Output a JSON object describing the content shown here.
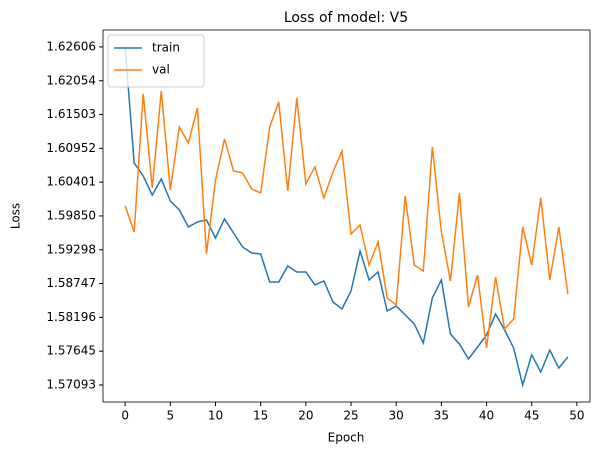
{
  "chart_data": {
    "type": "line",
    "title": "Loss of model: V5",
    "x_label": "Epoch",
    "y_label": "Loss",
    "x": [
      0,
      1,
      2,
      3,
      4,
      5,
      6,
      7,
      8,
      9,
      10,
      11,
      12,
      13,
      14,
      15,
      16,
      17,
      18,
      19,
      20,
      21,
      22,
      23,
      24,
      25,
      26,
      27,
      28,
      29,
      30,
      31,
      32,
      33,
      34,
      35,
      36,
      37,
      38,
      39,
      40,
      41,
      42,
      43,
      44,
      45,
      46,
      47,
      48,
      49
    ],
    "series": [
      {
        "name": "train",
        "color": "#1f77b4",
        "values": [
          1.62606,
          1.60714,
          1.60502,
          1.60192,
          1.60453,
          1.60094,
          1.59947,
          1.5967,
          1.59752,
          1.59784,
          1.59491,
          1.59801,
          1.59572,
          1.59344,
          1.59246,
          1.5923,
          1.58773,
          1.58773,
          1.59034,
          1.58936,
          1.58936,
          1.58724,
          1.58789,
          1.58447,
          1.58333,
          1.58626,
          1.59279,
          1.58806,
          1.58936,
          1.583,
          1.58382,
          1.58235,
          1.58088,
          1.57778,
          1.58512,
          1.58806,
          1.57925,
          1.57762,
          1.57517,
          1.57713,
          1.57909,
          1.58251,
          1.5799,
          1.57697,
          1.57093,
          1.57583,
          1.57305,
          1.57664,
          1.5737,
          1.5755
        ]
      },
      {
        "name": "val",
        "color": "#ff7f0e",
        "values": [
          1.60013,
          1.59589,
          1.61839,
          1.60306,
          1.61888,
          1.60274,
          1.61301,
          1.6104,
          1.61611,
          1.5923,
          1.60437,
          1.61105,
          1.60584,
          1.60551,
          1.6029,
          1.60225,
          1.61301,
          1.61709,
          1.60257,
          1.61774,
          1.60372,
          1.60649,
          1.60143,
          1.60567,
          1.6091,
          1.59556,
          1.59703,
          1.5905,
          1.59426,
          1.58512,
          1.58398,
          1.60176,
          1.5905,
          1.58953,
          1.60975,
          1.59589,
          1.58789,
          1.60225,
          1.58365,
          1.58887,
          1.57697,
          1.58855,
          1.58007,
          1.5817,
          1.5967,
          1.5905,
          1.60143,
          1.58806,
          1.5967,
          1.58577
        ]
      }
    ],
    "xlim": [
      -2.45,
      51.45
    ],
    "xticks": [
      0,
      5,
      10,
      15,
      20,
      25,
      30,
      35,
      40,
      45,
      50
    ],
    "ylim": [
      1.56816,
      1.62882
    ],
    "yticks": [
      1.62606,
      1.62054,
      1.61503,
      1.60952,
      1.60401,
      {
        "value": 1.5985,
        "label": "1.59850"
      },
      1.59298,
      1.58747,
      1.58196,
      1.57645,
      1.57093
    ],
    "legend": "upper left",
    "grid": false
  }
}
